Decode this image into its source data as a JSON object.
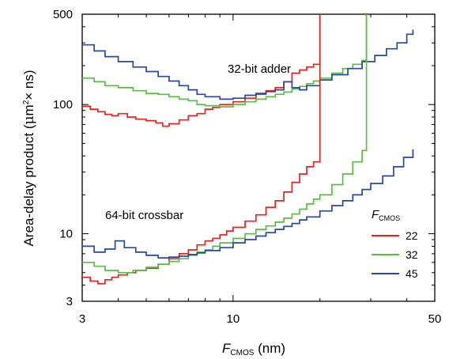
{
  "chart_data": {
    "type": "line",
    "title": "",
    "xlabel": {
      "italic": "F",
      "sub": "CMOS",
      "unit": " (nm)"
    },
    "ylabel": {
      "pre": "Area-delay product (",
      "mu": "μ",
      "mid": "m",
      "sup": "2",
      "post": "× ns)"
    },
    "xscale": "log",
    "yscale": "log",
    "xlim": [
      3,
      50
    ],
    "ylim": [
      3,
      500
    ],
    "xticks": [
      3,
      10,
      50
    ],
    "xtick_labels": [
      "3",
      "10",
      "50"
    ],
    "yticks": [
      3,
      10,
      100,
      500
    ],
    "ytick_labels": [
      "3",
      "10",
      "100",
      "500"
    ],
    "grid": false,
    "legend": {
      "title_italic": "F",
      "title_sub": "CMOS",
      "placement": "lower-right",
      "entries": [
        "22",
        "32",
        "45"
      ]
    },
    "annotations": [
      "32-bit adder",
      "64-bit crossbar"
    ],
    "groups": [
      {
        "label": "32-bit adder",
        "series": [
          {
            "name": "22",
            "color": "#e8231d",
            "x": [
              3.0,
              3.2,
              3.4,
              3.6,
              3.8,
              4.0,
              4.3,
              4.6,
              5.0,
              5.4,
              5.7,
              6.0,
              6.5,
              7.0,
              7.5,
              8.0,
              8.5,
              9.0,
              10.0,
              11.0,
              12.0,
              13.0,
              14.0,
              15.0,
              16.0,
              17.0,
              18.0,
              19.0,
              20.0
            ],
            "y": [
              97,
              92,
              88,
              84,
              82,
              85,
              80,
              77,
              75,
              72,
              68,
              71,
              76,
              82,
              85,
              92,
              95,
              100,
              105,
              112,
              120,
              128,
              135,
              150,
              175,
              185,
              195,
              205,
              500
            ]
          },
          {
            "name": "32",
            "color": "#5bbd44",
            "x": [
              3.0,
              3.3,
              3.6,
              4.0,
              4.5,
              5.0,
              5.5,
              6.0,
              6.5,
              7.0,
              7.5,
              8.0,
              9.0,
              10.0,
              11.0,
              12.0,
              13.0,
              14.0,
              15.0,
              16.0,
              17.0,
              18.0,
              19.0,
              20.0,
              22.0,
              24.0,
              26.0,
              28.0,
              29.0
            ],
            "y": [
              160,
              150,
              140,
              135,
              128,
              122,
              120,
              115,
              110,
              107,
              100,
              98,
              96,
              100,
              105,
              110,
              115,
              120,
              125,
              132,
              138,
              145,
              152,
              160,
              175,
              190,
              205,
              220,
              500
            ]
          },
          {
            "name": "45",
            "color": "#2749a4",
            "x": [
              3.0,
              3.3,
              3.6,
              4.0,
              4.5,
              5.0,
              5.5,
              6.0,
              6.5,
              7.0,
              7.5,
              8.0,
              9.0,
              10.0,
              11.0,
              12.0,
              13.0,
              14.0,
              15.0,
              16.0,
              17.0,
              18.0,
              20.0,
              22.0,
              25.0,
              28.0,
              31.0,
              34.0,
              37.0,
              40.0,
              42.0
            ],
            "y": [
              290,
              260,
              235,
              215,
              195,
              180,
              165,
              152,
              140,
              130,
              120,
              115,
              110,
              112,
              118,
              122,
              126,
              130,
              150,
              135,
              130,
              140,
              155,
              170,
              190,
              215,
              240,
              270,
              300,
              350,
              380
            ]
          }
        ]
      },
      {
        "label": "64-bit crossbar",
        "series": [
          {
            "name": "22",
            "color": "#e8231d",
            "x": [
              3.0,
              3.2,
              3.4,
              3.6,
              3.8,
              4.0,
              4.3,
              4.6,
              5.0,
              5.5,
              6.0,
              6.5,
              7.0,
              7.5,
              8.0,
              8.5,
              9.0,
              9.5,
              10.0,
              11.0,
              12.0,
              13.0,
              14.0,
              15.0,
              16.0,
              17.0,
              18.0,
              19.0,
              20.0
            ],
            "y": [
              4.6,
              4.3,
              4.1,
              4.4,
              4.6,
              4.8,
              5.0,
              5.2,
              5.4,
              5.8,
              6.4,
              7.0,
              7.5,
              8.2,
              8.8,
              9.2,
              9.8,
              10.5,
              11.2,
              12.5,
              14.0,
              16.0,
              18.0,
              21.0,
              25.0,
              29.0,
              33.0,
              36.0,
              500
            ]
          },
          {
            "name": "32",
            "color": "#5bbd44",
            "x": [
              3.0,
              3.3,
              3.6,
              4.0,
              4.5,
              5.0,
              5.5,
              6.0,
              6.5,
              7.0,
              7.5,
              8.0,
              8.5,
              9.0,
              10.0,
              11.0,
              12.0,
              13.0,
              14.0,
              15.0,
              16.0,
              17.0,
              18.0,
              19.0,
              20.0,
              22.0,
              24.0,
              26.0,
              28.0,
              29.0
            ],
            "y": [
              6.0,
              5.6,
              5.2,
              5.0,
              5.2,
              5.5,
              5.8,
              6.1,
              6.4,
              6.8,
              7.2,
              7.5,
              8.0,
              8.5,
              9.2,
              10.0,
              10.8,
              11.5,
              12.3,
              13.2,
              14.2,
              15.5,
              17.0,
              18.5,
              20.0,
              24.0,
              29.0,
              36.0,
              44.0,
              500
            ]
          },
          {
            "name": "45",
            "color": "#2749a4",
            "x": [
              3.0,
              3.3,
              3.6,
              3.9,
              4.2,
              4.6,
              5.0,
              5.5,
              6.0,
              6.5,
              7.0,
              7.5,
              8.0,
              9.0,
              10.0,
              11.0,
              12.0,
              13.0,
              14.0,
              15.0,
              16.0,
              17.0,
              18.0,
              20.0,
              22.0,
              24.0,
              26.0,
              28.0,
              30.0,
              33.0,
              36.0,
              39.0,
              42.0
            ],
            "y": [
              8.0,
              7.2,
              7.6,
              8.8,
              7.8,
              7.2,
              6.8,
              6.5,
              6.6,
              6.7,
              6.9,
              7.1,
              7.4,
              7.8,
              8.5,
              9.0,
              9.6,
              10.2,
              10.8,
              11.4,
              12.0,
              12.8,
              13.5,
              15.0,
              16.5,
              18.0,
              20.0,
              22.0,
              24.5,
              28.0,
              33.0,
              39.0,
              45.0
            ]
          }
        ]
      }
    ]
  }
}
